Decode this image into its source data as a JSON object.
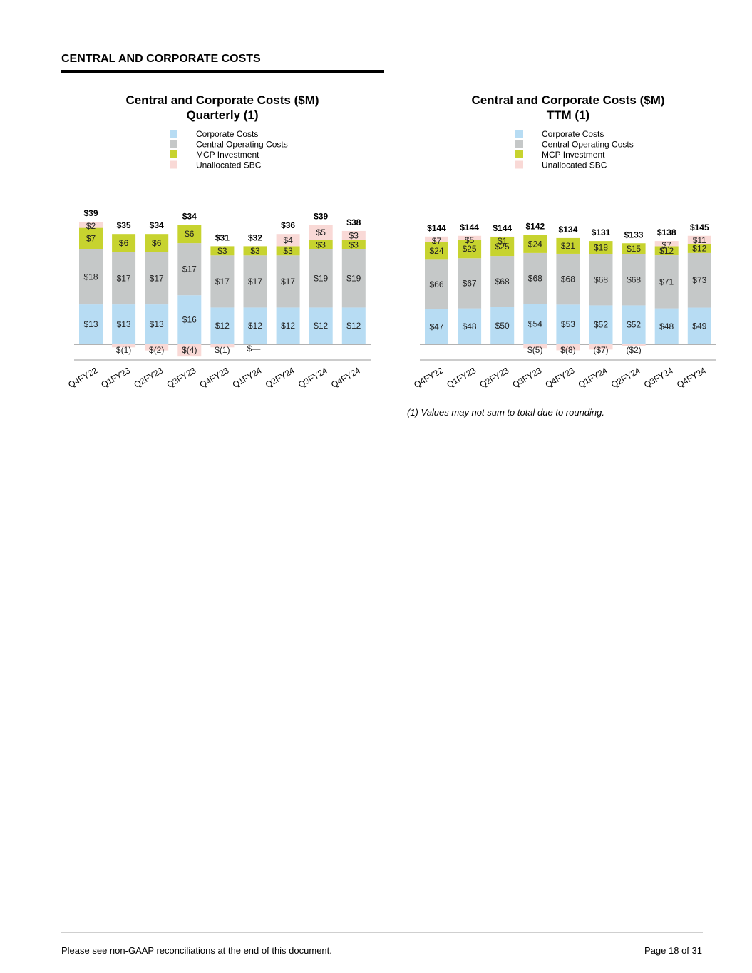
{
  "section_title": "CENTRAL AND CORPORATE COSTS",
  "footnote": "(1) Values may not sum to total due to rounding.",
  "footer": {
    "left": "Please see non-GAAP reconciliations at the end of this document.",
    "right": "Page 18 of 31"
  },
  "colors": {
    "corporate": "#b7dcf3",
    "central": "#c5c8c8",
    "mcp": "#c7d32f",
    "sbc": "#f9d9d6"
  },
  "chart_data": [
    {
      "type": "bar",
      "stacked": true,
      "title": [
        "Central and Corporate Costs ($M)",
        "Quarterly (1)"
      ],
      "legend": [
        "Corporate Costs",
        "Central Operating Costs",
        "MCP Investment",
        "Unallocated SBC"
      ],
      "legend_position": "top-center",
      "categories": [
        "Q4FY22",
        "Q1FY23",
        "Q2FY23",
        "Q3FY23",
        "Q4FY23",
        "Q1FY24",
        "Q2FY24",
        "Q3FY24",
        "Q4FY24"
      ],
      "ylim": [
        -5,
        40
      ],
      "totals": [
        39,
        35,
        34,
        34,
        31,
        32,
        36,
        39,
        38
      ],
      "total_labels": [
        "$39",
        "$35",
        "$34",
        "$34",
        "$31",
        "$32",
        "$36",
        "$39",
        "$38"
      ],
      "series": [
        {
          "name": "Corporate Costs",
          "values": [
            13,
            13,
            13,
            16,
            12,
            12,
            12,
            12,
            12
          ],
          "labels": [
            "$13",
            "$13",
            "$13",
            "$16",
            "$12",
            "$12",
            "$12",
            "$12",
            "$12"
          ]
        },
        {
          "name": "Central Operating Costs",
          "values": [
            18,
            17,
            17,
            17,
            17,
            17,
            17,
            19,
            19
          ],
          "labels": [
            "$18",
            "$17",
            "$17",
            "$17",
            "$17",
            "$17",
            "$17",
            "$19",
            "$19"
          ]
        },
        {
          "name": "MCP Investment",
          "values": [
            7,
            6,
            6,
            6,
            3,
            3,
            3,
            3,
            3
          ],
          "labels": [
            "$7",
            "$6",
            "$6",
            "$6",
            "$3",
            "$3",
            "$3",
            "$3",
            "$3"
          ]
        },
        {
          "name": "Unallocated SBC",
          "values": [
            2,
            -1,
            -2,
            -4,
            -1,
            0,
            4,
            5,
            3
          ],
          "labels": [
            "$2",
            "$(1)",
            "$(2)",
            "$(4)",
            "$(1)",
            "$—",
            "$4",
            "$5",
            "$3"
          ]
        }
      ]
    },
    {
      "type": "bar",
      "stacked": true,
      "title": [
        "Central and Corporate Costs ($M)",
        "TTM (1)"
      ],
      "legend": [
        "Corporate Costs",
        "Central Operating Costs",
        "MCP Investment",
        "Unallocated SBC"
      ],
      "legend_position": "top-center",
      "categories": [
        "Q4FY22",
        "Q1FY23",
        "Q2FY23",
        "Q3FY23",
        "Q4FY23",
        "Q1FY24",
        "Q2FY24",
        "Q3FY24",
        "Q4FY24"
      ],
      "ylim": [
        -10,
        150
      ],
      "totals": [
        144,
        144,
        144,
        142,
        134,
        131,
        133,
        138,
        145
      ],
      "total_labels": [
        "$144",
        "$144",
        "$144",
        "$142",
        "$134",
        "$131",
        "$133",
        "$138",
        "$145"
      ],
      "series": [
        {
          "name": "Corporate Costs",
          "values": [
            47,
            48,
            50,
            54,
            53,
            52,
            52,
            48,
            49
          ],
          "labels": [
            "$47",
            "$48",
            "$50",
            "$54",
            "$53",
            "$52",
            "$52",
            "$48",
            "$49"
          ]
        },
        {
          "name": "Central Operating Costs",
          "values": [
            66,
            67,
            68,
            68,
            68,
            68,
            68,
            71,
            73
          ],
          "labels": [
            "$66",
            "$67",
            "$68",
            "$68",
            "$68",
            "$68",
            "$68",
            "$71",
            "$73"
          ]
        },
        {
          "name": "MCP Investment",
          "values": [
            24,
            25,
            25,
            24,
            21,
            18,
            15,
            12,
            12
          ],
          "labels": [
            "$24",
            "$25",
            "$25",
            "$24",
            "$21",
            "$18",
            "$15",
            "$12",
            "$12"
          ]
        },
        {
          "name": "Unallocated SBC",
          "values": [
            7,
            5,
            1,
            -5,
            -8,
            -7,
            -2,
            7,
            11
          ],
          "labels": [
            "$7",
            "$5",
            "$1",
            "$(5)",
            "$(8)",
            "($7)",
            "($2)",
            "$7",
            "$11"
          ]
        }
      ]
    }
  ]
}
